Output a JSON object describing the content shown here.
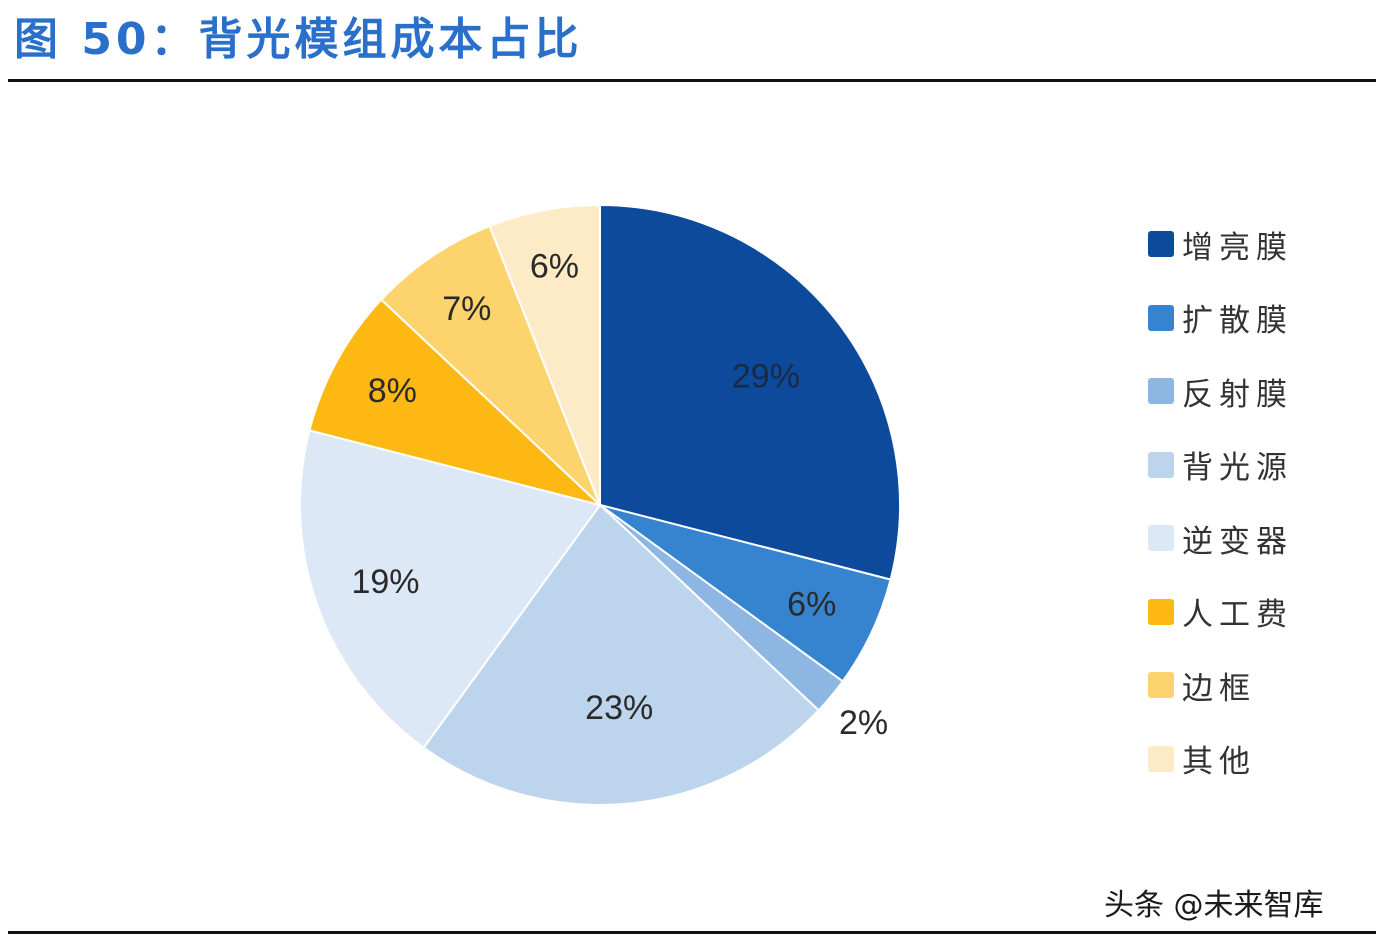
{
  "figure": {
    "title": "图 50：背光模组成本占比"
  },
  "chart_data": {
    "type": "pie",
    "categories": [
      "增亮膜",
      "扩散膜",
      "反射膜",
      "背光源",
      "逆变器",
      "人工费",
      "边框",
      "其他"
    ],
    "values": [
      29,
      6,
      2,
      23,
      19,
      8,
      7,
      6
    ],
    "labels": [
      "29%",
      "6%",
      "2%",
      "23%",
      "19%",
      "8%",
      "7%",
      "6%"
    ],
    "colors": [
      "#0e4a9c",
      "#3684d0",
      "#8eb6e3",
      "#bdd5ec",
      "#dce8f6",
      "#fdb813",
      "#fdd36e",
      "#fdebc8"
    ],
    "start": "12 o'clock",
    "direction": "clockwise",
    "legend_position": "right",
    "data_labels": "inside"
  },
  "watermark": "头条 @未来智库"
}
